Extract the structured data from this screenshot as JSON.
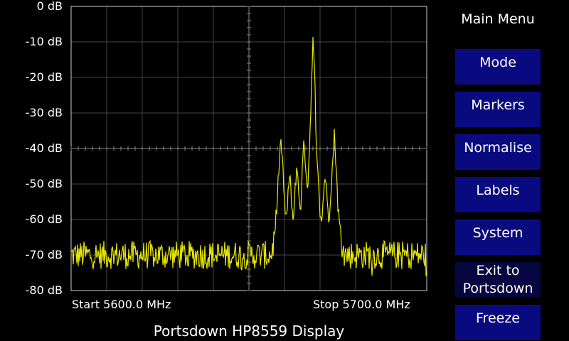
{
  "chart_data": {
    "type": "line",
    "title": "Portsdown HP8559 Display",
    "y_ticks": [
      "0 dB",
      "-10 dB",
      "-20 dB",
      "-30 dB",
      "-40 dB",
      "-50 dB",
      "-60 dB",
      "-70 dB",
      "-80 dB"
    ],
    "ylim": [
      -80,
      0
    ],
    "xlim": [
      5600.0,
      5700.0
    ],
    "x_start_label": "Start 5600.0 MHz",
    "x_stop_label": "Stop 5700.0 MHz",
    "grid": true,
    "grid_color": "#444444",
    "trace_color": "#e8e800",
    "noise_floor_db": -70,
    "series": [
      {
        "x": [
          5600,
          5656,
          5656.5,
          5657,
          5657.5,
          5658,
          5658.5,
          5659,
          5659.5,
          5660,
          5660.5,
          5661,
          5661.5,
          5662,
          5662.5,
          5663,
          5663.5,
          5664,
          5664.5,
          5665,
          5665.5,
          5666,
          5666.5,
          5667,
          5667.5,
          5668,
          5668.5,
          5669,
          5669.5,
          5670,
          5670.5,
          5671,
          5671.5,
          5672,
          5672.5,
          5673,
          5673.5,
          5674,
          5674.5,
          5675,
          5675.5,
          5676,
          5676.5,
          5677,
          5677.5,
          5678,
          5678.5,
          5679,
          5700
        ],
        "values": [
          -70,
          -70,
          -69,
          -66,
          -62,
          -54,
          -43,
          -38,
          -44,
          -56,
          -61,
          -52,
          -48,
          -55,
          -61,
          -50,
          -46,
          -52,
          -58,
          -46,
          -38,
          -45,
          -52,
          -40,
          -25,
          -10,
          -20,
          -38,
          -50,
          -58,
          -61,
          -52,
          -47,
          -55,
          -60,
          -52,
          -45,
          -36,
          -44,
          -56,
          -62,
          -66,
          -69,
          -70,
          -70,
          -70,
          -70,
          -70,
          -70
        ]
      }
    ]
  },
  "menu": {
    "title": "Main Menu",
    "buttons": [
      {
        "label": "Mode"
      },
      {
        "label": "Markers"
      },
      {
        "label": "Normalise"
      },
      {
        "label": "Labels"
      },
      {
        "label": "System"
      },
      {
        "label": "Exit to\nPortsdown"
      },
      {
        "label": "Freeze"
      }
    ]
  }
}
